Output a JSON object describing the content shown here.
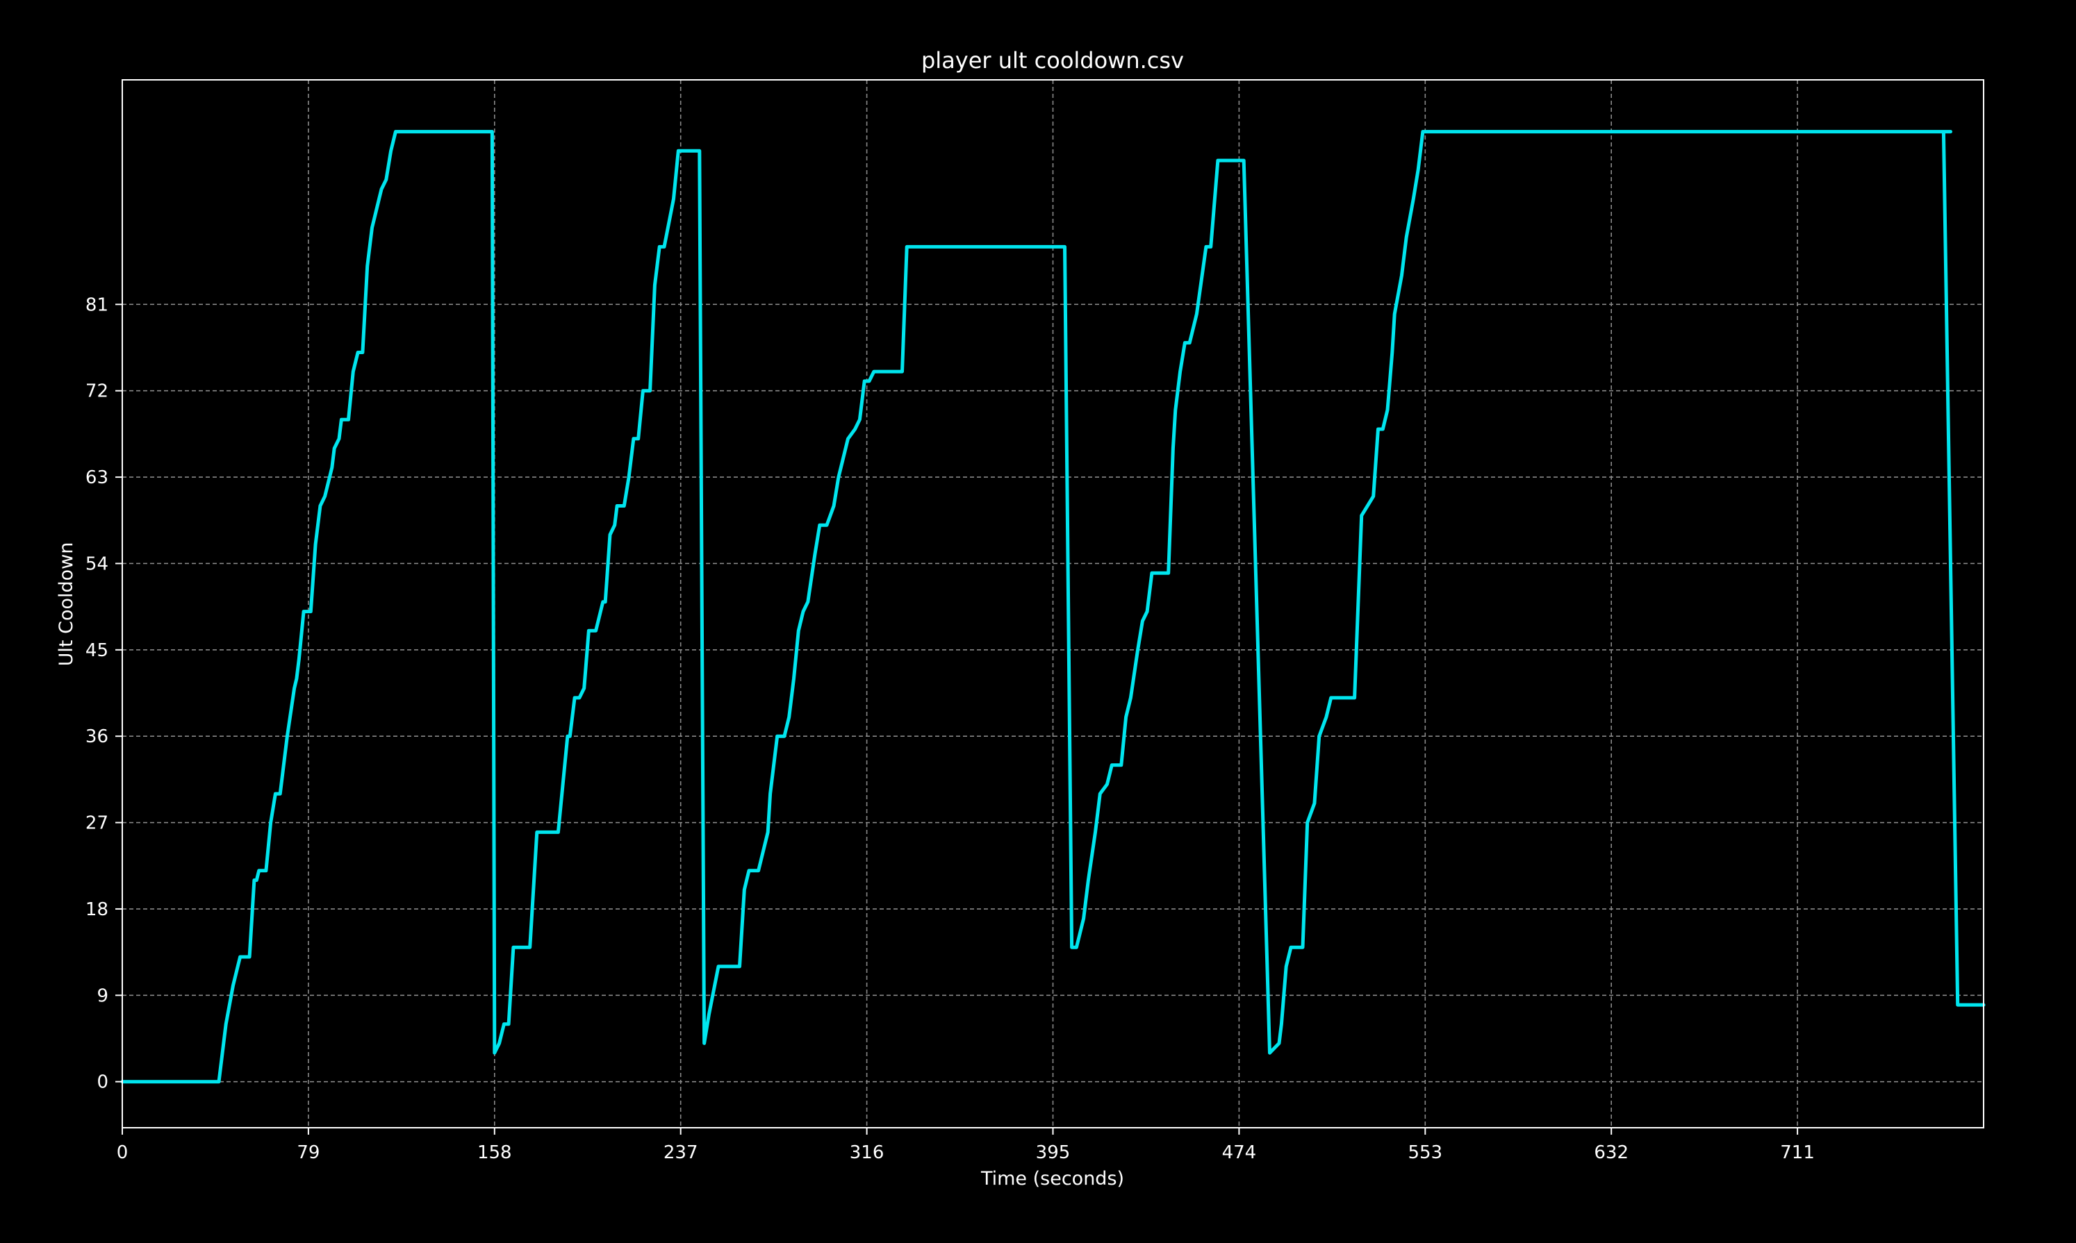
{
  "chart_data": {
    "type": "line",
    "title": "player ult cooldown.csv",
    "xlabel": "Time (seconds)",
    "ylabel": "Ult Cooldown",
    "xlim": [
      0,
      790
    ],
    "ylim": [
      -4.8,
      104.4
    ],
    "xticks": [
      0,
      79,
      158,
      237,
      316,
      395,
      474,
      553,
      632,
      711
    ],
    "yticks": [
      0,
      9,
      18,
      27,
      36,
      45,
      54,
      63,
      72,
      81
    ],
    "grid": true,
    "colors": {
      "background": "#000000",
      "line": "#00e5ee",
      "frame": "#ffffff",
      "grid": "#8a8a8a"
    },
    "series": [
      {
        "name": "",
        "x": [
          0,
          41,
          44,
          47,
          49,
          50,
          52,
          54,
          56,
          57,
          58,
          60,
          61,
          63,
          65,
          67,
          70,
          73,
          74,
          75,
          77,
          80,
          82,
          84,
          86,
          88,
          89,
          90,
          92,
          93,
          94,
          96,
          98,
          100,
          102,
          104,
          106,
          107,
          109,
          110,
          112,
          114,
          116,
          117,
          118,
          120,
          121,
          123,
          125,
          127,
          129,
          130,
          131,
          132,
          134,
          136,
          137,
          138,
          141,
          157,
          158,
          160,
          162,
          164,
          166,
          170,
          170,
          173,
          176,
          178,
          180,
          182,
          185,
          189,
          190,
          192,
          194,
          196,
          198,
          201,
          204,
          205,
          207,
          209,
          210,
          213,
          215,
          217,
          219,
          221,
          224,
          226,
          228,
          230,
          234,
          236,
          241,
          243,
          245,
          247,
          249,
          253,
          259,
          262,
          264,
          266,
          270,
          274,
          275,
          278,
          281,
          283,
          285,
          287,
          289,
          291,
          294,
          296,
          299,
          302,
          304,
          306,
          308,
          311,
          313,
          315,
          317,
          319,
          321,
          323,
          325,
          327,
          329,
          331,
          333,
          335,
          340,
          342,
          345,
          350,
          351,
          356,
          356,
          380,
          390,
          400,
          403,
          405,
          408,
          410,
          413,
          415,
          418,
          420,
          423,
          424,
          426,
          428,
          431,
          433,
          435,
          437,
          439,
          440,
          442,
          444,
          446,
          447,
          449,
          451,
          453,
          456,
          460,
          462,
          465,
          468,
          470,
          473,
          476,
          487,
          491,
          492,
          494,
          496,
          498,
          501,
          503,
          506,
          508,
          511,
          513,
          515,
          517,
          519,
          521,
          523,
          526,
          531,
          533,
          535,
          537,
          539,
          540,
          543,
          545,
          548,
          550,
          552,
          555,
          557,
          560,
          570,
          600,
          650,
          700,
          750,
          776,
          773,
          779,
          783,
          790
        ],
        "y": [
          0,
          0,
          6,
          10,
          12,
          13,
          13,
          13,
          21,
          21,
          22,
          22,
          22,
          27,
          30,
          30,
          36,
          41,
          42,
          44,
          49,
          49,
          56,
          60,
          61,
          63,
          64,
          66,
          67,
          69,
          69,
          69,
          74,
          76,
          76,
          85,
          89,
          90,
          92,
          93,
          94,
          97,
          99,
          99,
          99,
          99,
          99,
          99,
          99,
          99,
          99,
          99,
          99,
          99,
          99,
          99,
          99,
          99,
          99,
          99,
          3,
          4,
          6,
          6,
          14,
          14,
          14,
          14,
          26,
          26,
          26,
          26,
          26,
          36,
          36,
          40,
          40,
          41,
          47,
          47,
          50,
          50,
          57,
          58,
          60,
          60,
          63,
          67,
          67,
          72,
          72,
          83,
          87,
          87,
          92,
          97,
          97,
          97,
          97,
          4,
          7,
          12,
          12,
          12,
          20,
          22,
          22,
          26,
          30,
          36,
          36,
          38,
          42,
          47,
          49,
          50,
          55,
          58,
          58,
          60,
          63,
          65,
          67,
          68,
          69,
          73,
          73,
          74,
          74,
          74,
          74,
          74,
          74,
          74,
          87,
          87,
          87,
          87,
          87,
          87,
          87,
          87,
          87,
          87,
          87,
          87,
          14,
          14,
          17,
          21,
          26,
          30,
          31,
          33,
          33,
          33,
          38,
          40,
          45,
          48,
          49,
          53,
          53,
          53,
          53,
          53,
          66,
          70,
          74,
          77,
          77,
          80,
          87,
          87,
          96,
          96,
          96,
          96,
          96,
          3,
          4,
          6,
          12,
          14,
          14,
          14,
          27,
          29,
          36,
          38,
          40,
          40,
          40,
          40,
          40,
          40,
          59,
          61,
          68,
          68,
          70,
          76,
          80,
          84,
          88,
          92,
          95,
          99,
          99,
          99,
          99,
          99,
          99,
          99,
          99,
          99,
          99,
          99,
          8,
          8,
          8
        ]
      }
    ]
  }
}
